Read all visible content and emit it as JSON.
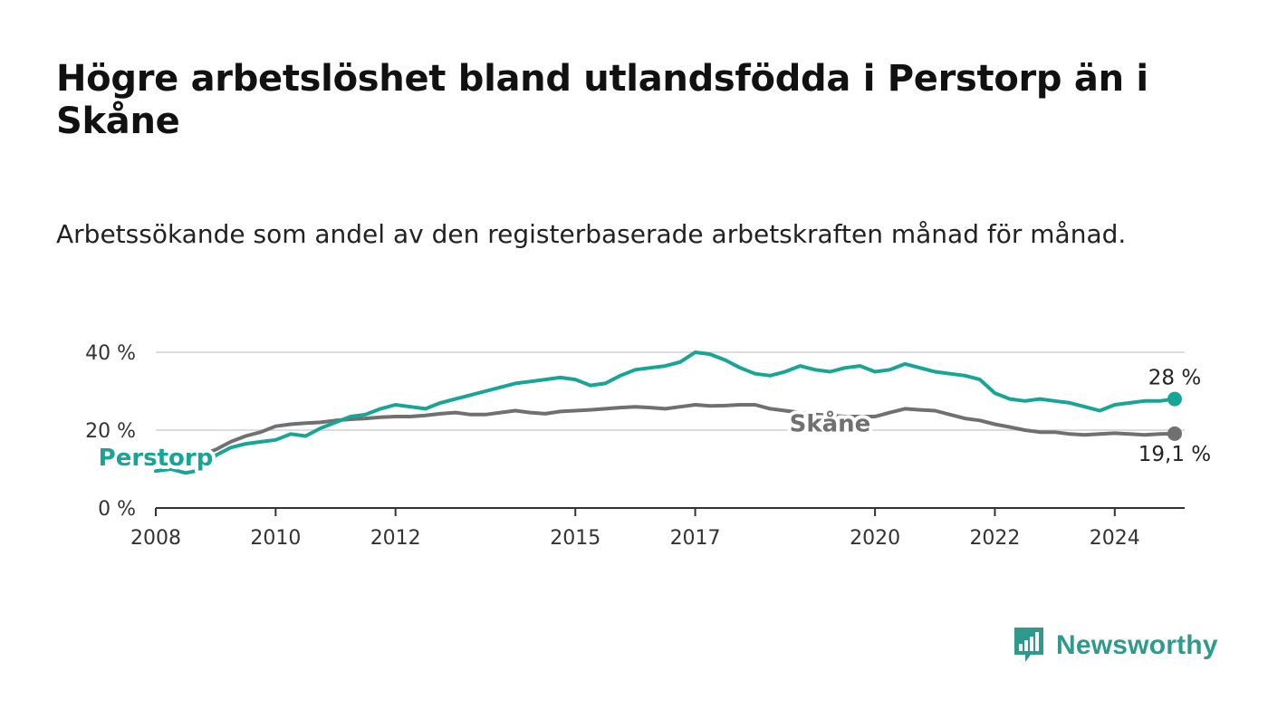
{
  "header": {
    "title": "Högre arbetslöshet bland utlandsfödda i Perstorp än i Skåne",
    "subtitle": "Arbetssökande som andel av den registerbaserade arbetskraften månad för månad."
  },
  "brand": {
    "name": "Newsworthy",
    "icon": "newsworthy-logo-icon"
  },
  "colors": {
    "perstorp": "#17a595",
    "skane": "#707070",
    "grid": "#dcdcdc",
    "axis": "#333333"
  },
  "chart_data": {
    "type": "line",
    "x_axis": {
      "range": [
        "2008-01",
        "2025-03"
      ],
      "ticks": [
        "2008",
        "2010",
        "2012",
        "2015",
        "2017",
        "2020",
        "2022",
        "2024"
      ]
    },
    "y_axis": {
      "range": [
        0,
        40
      ],
      "ticks": [
        0,
        20,
        40
      ],
      "tick_labels": [
        "0 %",
        "20 %",
        "40 %"
      ],
      "grid": true
    },
    "series": [
      {
        "name": "Perstorp",
        "end_label": "28 %",
        "points": [
          [
            "2008-01",
            9.5
          ],
          [
            "2008-04",
            10.0
          ],
          [
            "2008-07",
            9.0
          ],
          [
            "2008-10",
            9.8
          ],
          [
            "2009-01",
            13.5
          ],
          [
            "2009-04",
            15.5
          ],
          [
            "2009-07",
            16.5
          ],
          [
            "2009-10",
            17.0
          ],
          [
            "2010-01",
            17.5
          ],
          [
            "2010-04",
            19.0
          ],
          [
            "2010-07",
            18.5
          ],
          [
            "2010-10",
            20.5
          ],
          [
            "2011-01",
            22.0
          ],
          [
            "2011-04",
            23.5
          ],
          [
            "2011-07",
            24.0
          ],
          [
            "2011-10",
            25.5
          ],
          [
            "2012-01",
            26.5
          ],
          [
            "2012-04",
            26.0
          ],
          [
            "2012-07",
            25.5
          ],
          [
            "2012-10",
            27.0
          ],
          [
            "2013-01",
            28.0
          ],
          [
            "2013-04",
            29.0
          ],
          [
            "2013-07",
            30.0
          ],
          [
            "2013-10",
            31.0
          ],
          [
            "2014-01",
            32.0
          ],
          [
            "2014-04",
            32.5
          ],
          [
            "2014-07",
            33.0
          ],
          [
            "2014-10",
            33.5
          ],
          [
            "2015-01",
            33.0
          ],
          [
            "2015-04",
            31.5
          ],
          [
            "2015-07",
            32.0
          ],
          [
            "2015-10",
            34.0
          ],
          [
            "2016-01",
            35.5
          ],
          [
            "2016-04",
            36.0
          ],
          [
            "2016-07",
            36.5
          ],
          [
            "2016-10",
            37.5
          ],
          [
            "2017-01",
            40.0
          ],
          [
            "2017-04",
            39.5
          ],
          [
            "2017-07",
            38.0
          ],
          [
            "2017-10",
            36.0
          ],
          [
            "2018-01",
            34.5
          ],
          [
            "2018-04",
            34.0
          ],
          [
            "2018-07",
            35.0
          ],
          [
            "2018-10",
            36.5
          ],
          [
            "2019-01",
            35.5
          ],
          [
            "2019-04",
            35.0
          ],
          [
            "2019-07",
            36.0
          ],
          [
            "2019-10",
            36.5
          ],
          [
            "2020-01",
            35.0
          ],
          [
            "2020-04",
            35.5
          ],
          [
            "2020-07",
            37.0
          ],
          [
            "2020-10",
            36.0
          ],
          [
            "2021-01",
            35.0
          ],
          [
            "2021-04",
            34.5
          ],
          [
            "2021-07",
            34.0
          ],
          [
            "2021-10",
            33.0
          ],
          [
            "2022-01",
            29.5
          ],
          [
            "2022-04",
            28.0
          ],
          [
            "2022-07",
            27.5
          ],
          [
            "2022-10",
            28.0
          ],
          [
            "2023-01",
            27.5
          ],
          [
            "2023-04",
            27.0
          ],
          [
            "2023-07",
            26.0
          ],
          [
            "2023-10",
            25.0
          ],
          [
            "2024-01",
            26.5
          ],
          [
            "2024-04",
            27.0
          ],
          [
            "2024-07",
            27.5
          ],
          [
            "2024-10",
            27.5
          ],
          [
            "2025-01",
            28.0
          ]
        ]
      },
      {
        "name": "Skåne",
        "end_label": "19,1 %",
        "points": [
          [
            "2008-01",
            14.0
          ],
          [
            "2008-04",
            13.5
          ],
          [
            "2008-07",
            13.0
          ],
          [
            "2008-10",
            13.5
          ],
          [
            "2009-01",
            15.0
          ],
          [
            "2009-04",
            17.0
          ],
          [
            "2009-07",
            18.5
          ],
          [
            "2009-10",
            19.5
          ],
          [
            "2010-01",
            21.0
          ],
          [
            "2010-04",
            21.5
          ],
          [
            "2010-07",
            21.8
          ],
          [
            "2010-10",
            22.0
          ],
          [
            "2011-01",
            22.5
          ],
          [
            "2011-04",
            22.8
          ],
          [
            "2011-07",
            23.0
          ],
          [
            "2011-10",
            23.3
          ],
          [
            "2012-01",
            23.5
          ],
          [
            "2012-04",
            23.5
          ],
          [
            "2012-07",
            23.8
          ],
          [
            "2012-10",
            24.2
          ],
          [
            "2013-01",
            24.5
          ],
          [
            "2013-04",
            24.0
          ],
          [
            "2013-07",
            24.0
          ],
          [
            "2013-10",
            24.5
          ],
          [
            "2014-01",
            25.0
          ],
          [
            "2014-04",
            24.5
          ],
          [
            "2014-07",
            24.2
          ],
          [
            "2014-10",
            24.8
          ],
          [
            "2015-01",
            25.0
          ],
          [
            "2015-04",
            25.2
          ],
          [
            "2015-07",
            25.5
          ],
          [
            "2015-10",
            25.8
          ],
          [
            "2016-01",
            26.0
          ],
          [
            "2016-04",
            25.8
          ],
          [
            "2016-07",
            25.5
          ],
          [
            "2016-10",
            26.0
          ],
          [
            "2017-01",
            26.5
          ],
          [
            "2017-04",
            26.2
          ],
          [
            "2017-07",
            26.3
          ],
          [
            "2017-10",
            26.5
          ],
          [
            "2018-01",
            26.5
          ],
          [
            "2018-04",
            25.5
          ],
          [
            "2018-07",
            25.0
          ],
          [
            "2018-10",
            24.5
          ],
          [
            "2019-01",
            24.0
          ],
          [
            "2019-04",
            23.8
          ],
          [
            "2019-07",
            23.5
          ],
          [
            "2019-10",
            23.5
          ],
          [
            "2020-01",
            23.5
          ],
          [
            "2020-04",
            24.5
          ],
          [
            "2020-07",
            25.5
          ],
          [
            "2020-10",
            25.2
          ],
          [
            "2021-01",
            25.0
          ],
          [
            "2021-04",
            24.0
          ],
          [
            "2021-07",
            23.0
          ],
          [
            "2021-10",
            22.5
          ],
          [
            "2022-01",
            21.5
          ],
          [
            "2022-04",
            20.8
          ],
          [
            "2022-07",
            20.0
          ],
          [
            "2022-10",
            19.5
          ],
          [
            "2023-01",
            19.5
          ],
          [
            "2023-04",
            19.0
          ],
          [
            "2023-07",
            18.8
          ],
          [
            "2023-10",
            19.0
          ],
          [
            "2024-01",
            19.2
          ],
          [
            "2024-04",
            19.0
          ],
          [
            "2024-07",
            18.8
          ],
          [
            "2024-10",
            19.0
          ],
          [
            "2025-01",
            19.1
          ]
        ]
      }
    ]
  }
}
